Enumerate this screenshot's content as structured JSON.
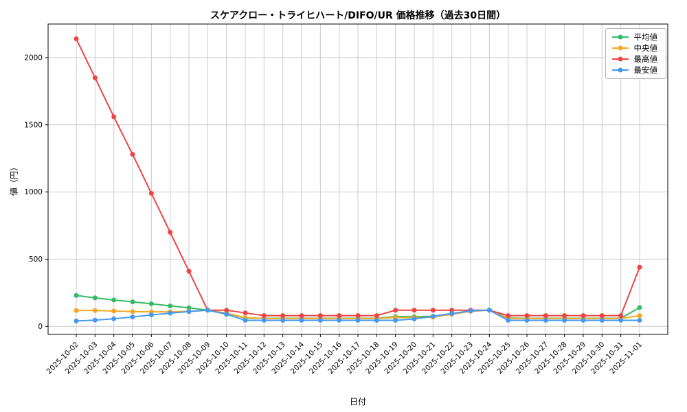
{
  "chart_data": {
    "type": "line",
    "title": "スケアクロー・トライヒハート/DIFO/UR 価格推移（過去30日間）",
    "xlabel": "日付",
    "ylabel": "値（円）",
    "grid": true,
    "legend_position": "upper right",
    "ylim": [
      -60,
      2250
    ],
    "yticks": [
      0,
      500,
      1000,
      1500,
      2000
    ],
    "x": [
      "2025-10-02",
      "2025-10-03",
      "2025-10-04",
      "2025-10-05",
      "2025-10-06",
      "2025-10-07",
      "2025-10-08",
      "2025-10-09",
      "2025-10-10",
      "2025-10-11",
      "2025-10-12",
      "2025-10-13",
      "2025-10-14",
      "2025-10-15",
      "2025-10-16",
      "2025-10-17",
      "2025-10-18",
      "2025-10-19",
      "2025-10-20",
      "2025-10-21",
      "2025-10-22",
      "2025-10-23",
      "2025-10-24",
      "2025-10-25",
      "2025-10-26",
      "2025-10-27",
      "2025-10-28",
      "2025-10-29",
      "2025-10-30",
      "2025-10-31",
      "2025-11-01"
    ],
    "series": [
      {
        "name": "平均値",
        "color": "#33bb66",
        "values": [
          230,
          212,
          196,
          182,
          168,
          152,
          138,
          120,
          98,
          62,
          60,
          60,
          60,
          60,
          60,
          60,
          60,
          72,
          72,
          75,
          95,
          115,
          120,
          62,
          60,
          60,
          60,
          60,
          60,
          60,
          140
        ]
      },
      {
        "name": "中央値",
        "color": "#f5a623",
        "values": [
          118,
          118,
          114,
          110,
          108,
          108,
          112,
          120,
          98,
          65,
          58,
          58,
          58,
          58,
          58,
          58,
          58,
          65,
          65,
          68,
          90,
          112,
          120,
          58,
          58,
          58,
          58,
          58,
          58,
          58,
          80
        ]
      },
      {
        "name": "最高値",
        "color": "#ee4444",
        "values": [
          2140,
          1850,
          1560,
          1280,
          990,
          700,
          410,
          120,
          120,
          100,
          80,
          80,
          80,
          80,
          80,
          80,
          80,
          120,
          120,
          120,
          120,
          120,
          120,
          80,
          80,
          80,
          80,
          80,
          80,
          80,
          440
        ]
      },
      {
        "name": "最安値",
        "color": "#4499ee",
        "values": [
          40,
          46,
          56,
          70,
          85,
          98,
          110,
          120,
          90,
          45,
          45,
          45,
          45,
          45,
          45,
          45,
          45,
          45,
          55,
          75,
          95,
          115,
          120,
          45,
          45,
          45,
          45,
          45,
          45,
          45,
          45
        ]
      }
    ]
  }
}
